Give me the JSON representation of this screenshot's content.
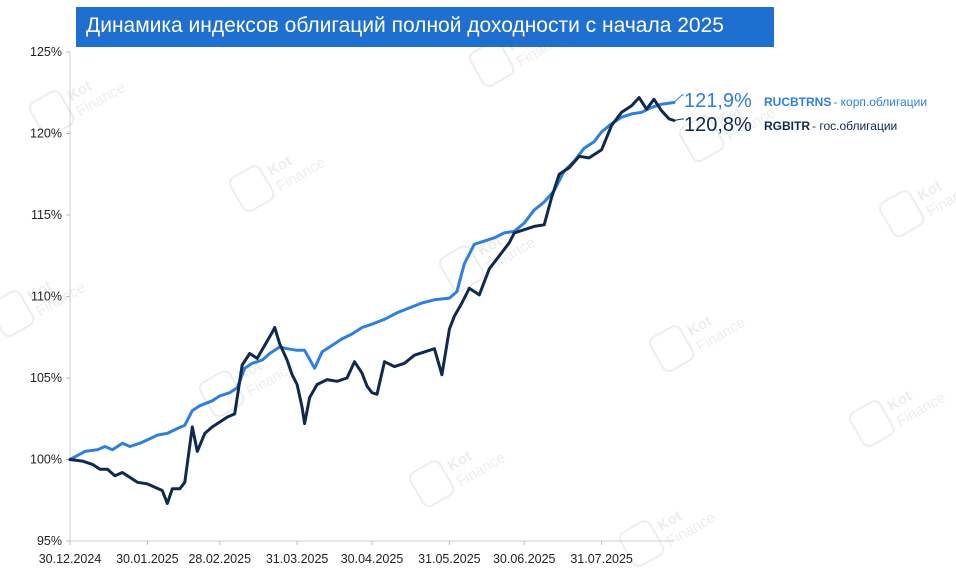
{
  "chart_data": {
    "type": "line",
    "title": "Динамика индексов облигаций полной доходности с начала 2025",
    "xlabel": "",
    "ylabel": "",
    "x_ticks": [
      "30.12.2024",
      "30.01.2025",
      "28.02.2025",
      "31.03.2025",
      "30.04.2025",
      "31.05.2025",
      "30.06.2025",
      "31.07.2025"
    ],
    "y_ticks": [
      "95%",
      "100%",
      "105%",
      "110%",
      "115%",
      "120%",
      "125%"
    ],
    "ylim": [
      95,
      125
    ],
    "x_range": [
      "30.12.2024",
      "29.08.2025"
    ],
    "grid": false,
    "legend": "right-end-labels",
    "series": [
      {
        "name": "RUCBTRNS",
        "description": "корп.облигации",
        "end_label": "121,9%",
        "color": "#2f7fdc",
        "points": [
          [
            "30.12.2024",
            100.0
          ],
          [
            "05.01.2025",
            100.5
          ],
          [
            "10.01.2025",
            100.6
          ],
          [
            "13.01.2025",
            100.8
          ],
          [
            "16.01.2025",
            100.6
          ],
          [
            "20.01.2025",
            101.0
          ],
          [
            "23.01.2025",
            100.8
          ],
          [
            "27.01.2025",
            101.0
          ],
          [
            "30.01.2025",
            101.2
          ],
          [
            "03.02.2025",
            101.5
          ],
          [
            "07.02.2025",
            101.6
          ],
          [
            "11.02.2025",
            101.9
          ],
          [
            "14.02.2025",
            102.1
          ],
          [
            "17.02.2025",
            103.0
          ],
          [
            "20.02.2025",
            103.3
          ],
          [
            "25.02.2025",
            103.6
          ],
          [
            "28.02.2025",
            103.9
          ],
          [
            "04.03.2025",
            104.1
          ],
          [
            "07.03.2025",
            104.4
          ],
          [
            "10.03.2025",
            105.6
          ],
          [
            "13.03.2025",
            105.9
          ],
          [
            "17.03.2025",
            106.1
          ],
          [
            "20.03.2025",
            106.5
          ],
          [
            "24.03.2025",
            106.9
          ],
          [
            "27.03.2025",
            106.8
          ],
          [
            "31.03.2025",
            106.7
          ],
          [
            "03.04.2025",
            106.7
          ],
          [
            "07.04.2025",
            105.6
          ],
          [
            "10.04.2025",
            106.6
          ],
          [
            "14.04.2025",
            107.0
          ],
          [
            "18.04.2025",
            107.4
          ],
          [
            "22.04.2025",
            107.7
          ],
          [
            "26.04.2025",
            108.1
          ],
          [
            "30.04.2025",
            108.3
          ],
          [
            "05.05.2025",
            108.6
          ],
          [
            "10.05.2025",
            109.0
          ],
          [
            "15.05.2025",
            109.3
          ],
          [
            "20.05.2025",
            109.6
          ],
          [
            "25.05.2025",
            109.8
          ],
          [
            "31.05.2025",
            109.9
          ],
          [
            "03.06.2025",
            110.3
          ],
          [
            "06.06.2025",
            112.0
          ],
          [
            "10.06.2025",
            113.2
          ],
          [
            "14.06.2025",
            113.4
          ],
          [
            "18.06.2025",
            113.6
          ],
          [
            "22.06.2025",
            113.9
          ],
          [
            "26.06.2025",
            114.0
          ],
          [
            "30.06.2025",
            114.5
          ],
          [
            "04.07.2025",
            115.3
          ],
          [
            "08.07.2025",
            115.8
          ],
          [
            "12.07.2025",
            116.5
          ],
          [
            "16.07.2025",
            117.7
          ],
          [
            "20.07.2025",
            118.3
          ],
          [
            "24.07.2025",
            119.1
          ],
          [
            "28.07.2025",
            119.5
          ],
          [
            "31.07.2025",
            120.1
          ],
          [
            "04.08.2025",
            120.6
          ],
          [
            "08.08.2025",
            121.0
          ],
          [
            "12.08.2025",
            121.2
          ],
          [
            "16.08.2025",
            121.3
          ],
          [
            "20.08.2025",
            121.6
          ],
          [
            "24.08.2025",
            121.8
          ],
          [
            "29.08.2025",
            121.9
          ]
        ]
      },
      {
        "name": "RGBITR",
        "description": "гос.облигации",
        "end_label": "120,8%",
        "color": "#0f2a4d",
        "points": [
          [
            "30.12.2024",
            100.0
          ],
          [
            "04.01.2025",
            99.9
          ],
          [
            "08.01.2025",
            99.7
          ],
          [
            "11.01.2025",
            99.4
          ],
          [
            "14.01.2025",
            99.4
          ],
          [
            "17.01.2025",
            99.0
          ],
          [
            "20.01.2025",
            99.2
          ],
          [
            "23.01.2025",
            98.9
          ],
          [
            "26.01.2025",
            98.6
          ],
          [
            "30.01.2025",
            98.5
          ],
          [
            "02.02.2025",
            98.3
          ],
          [
            "05.02.2025",
            98.1
          ],
          [
            "07.02.2025",
            97.3
          ],
          [
            "09.02.2025",
            98.2
          ],
          [
            "12.02.2025",
            98.2
          ],
          [
            "14.02.2025",
            98.6
          ],
          [
            "17.02.2025",
            102.0
          ],
          [
            "19.02.2025",
            100.5
          ],
          [
            "22.02.2025",
            101.6
          ],
          [
            "25.02.2025",
            102.0
          ],
          [
            "28.02.2025",
            102.3
          ],
          [
            "03.03.2025",
            102.6
          ],
          [
            "06.03.2025",
            102.8
          ],
          [
            "09.03.2025",
            105.8
          ],
          [
            "12.03.2025",
            106.5
          ],
          [
            "15.03.2025",
            106.2
          ],
          [
            "18.03.2025",
            107.0
          ],
          [
            "21.03.2025",
            107.8
          ],
          [
            "22.03.2025",
            108.1
          ],
          [
            "24.03.2025",
            107.1
          ],
          [
            "27.03.2025",
            106.1
          ],
          [
            "29.03.2025",
            105.2
          ],
          [
            "31.03.2025",
            104.6
          ],
          [
            "02.04.2025",
            103.2
          ],
          [
            "03.04.2025",
            102.2
          ],
          [
            "05.04.2025",
            103.8
          ],
          [
            "08.04.2025",
            104.6
          ],
          [
            "12.04.2025",
            104.9
          ],
          [
            "16.04.2025",
            104.8
          ],
          [
            "20.04.2025",
            105.0
          ],
          [
            "23.04.2025",
            106.0
          ],
          [
            "26.04.2025",
            105.3
          ],
          [
            "28.04.2025",
            104.5
          ],
          [
            "30.04.2025",
            104.1
          ],
          [
            "02.05.2025",
            104.0
          ],
          [
            "05.05.2025",
            106.0
          ],
          [
            "09.05.2025",
            105.7
          ],
          [
            "13.05.2025",
            105.9
          ],
          [
            "17.05.2025",
            106.4
          ],
          [
            "21.05.2025",
            106.6
          ],
          [
            "25.05.2025",
            106.8
          ],
          [
            "28.05.2025",
            105.2
          ],
          [
            "31.05.2025",
            108.0
          ],
          [
            "02.06.2025",
            108.8
          ],
          [
            "05.06.2025",
            109.6
          ],
          [
            "08.06.2025",
            110.5
          ],
          [
            "12.06.2025",
            110.1
          ],
          [
            "16.06.2025",
            111.7
          ],
          [
            "20.06.2025",
            112.5
          ],
          [
            "24.06.2025",
            113.3
          ],
          [
            "26.06.2025",
            113.9
          ],
          [
            "30.06.2025",
            114.1
          ],
          [
            "04.07.2025",
            114.3
          ],
          [
            "08.07.2025",
            114.4
          ],
          [
            "11.07.2025",
            116.1
          ],
          [
            "14.07.2025",
            117.5
          ],
          [
            "18.07.2025",
            117.9
          ],
          [
            "22.07.2025",
            118.6
          ],
          [
            "26.07.2025",
            118.5
          ],
          [
            "31.07.2025",
            119.0
          ],
          [
            "04.08.2025",
            120.5
          ],
          [
            "08.08.2025",
            121.3
          ],
          [
            "12.08.2025",
            121.7
          ],
          [
            "15.08.2025",
            122.2
          ],
          [
            "18.08.2025",
            121.5
          ],
          [
            "21.08.2025",
            122.1
          ],
          [
            "24.08.2025",
            121.4
          ],
          [
            "27.08.2025",
            120.9
          ],
          [
            "29.08.2025",
            120.8
          ]
        ]
      }
    ]
  },
  "watermark": {
    "name": "Kot",
    "sub": "Finance"
  }
}
